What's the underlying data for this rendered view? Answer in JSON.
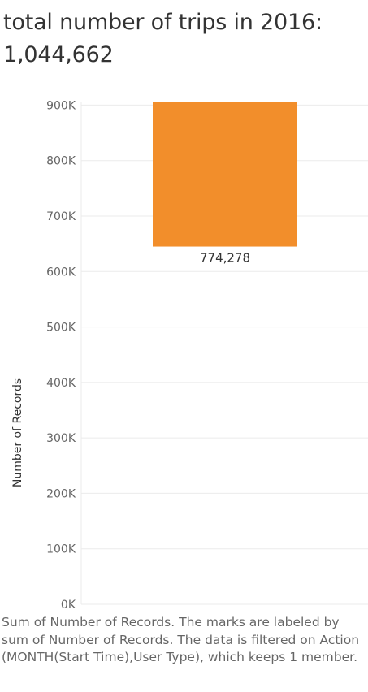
{
  "title": "total number of trips in 2016: 1,044,662",
  "caption": "Sum of Number of Records.  The marks are labeled by sum of Number of Records. The data is filtered on Action (MONTH(Start Time),User Type), which keeps 1 member.",
  "colors": {
    "bar": "#f28e2b",
    "gridline": "#ebebeb",
    "axis_line": "#d9d9d9"
  },
  "chart_data": {
    "type": "bar",
    "orientation": "vertical",
    "ylabel": "Number of Records",
    "xlabel": "",
    "ylim": [
      0,
      905000
    ],
    "yticks": [
      0,
      100000,
      200000,
      300000,
      400000,
      500000,
      600000,
      700000,
      800000,
      900000
    ],
    "ytick_labels": [
      "0K",
      "100K",
      "200K",
      "300K",
      "400K",
      "500K",
      "600K",
      "700K",
      "800K",
      "900K"
    ],
    "grid": true,
    "bars": [
      {
        "value": 774278,
        "range": [
          645000,
          905000
        ],
        "label": "774,278"
      }
    ]
  }
}
